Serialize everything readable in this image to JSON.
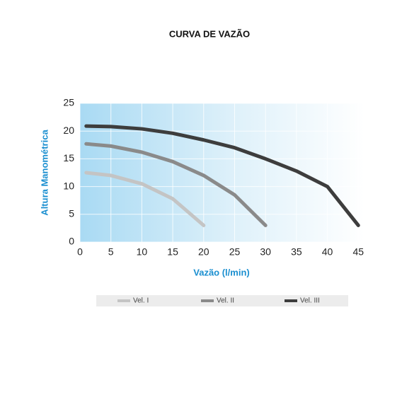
{
  "chart_data": {
    "type": "line",
    "title": "CURVA DE VAZÃO",
    "x_label": "Vazão (l/min)",
    "y_label": "Altura Manométrica",
    "xlim": [
      0,
      46
    ],
    "ylim": [
      0,
      25
    ],
    "xticks": [
      0,
      5,
      10,
      15,
      20,
      25,
      30,
      35,
      40,
      45
    ],
    "yticks": [
      0,
      5,
      10,
      15,
      20,
      25
    ],
    "grid": true,
    "series": [
      {
        "name": "Vel. I",
        "color": "#c4c4c4",
        "x": [
          1,
          5,
          10,
          15,
          20
        ],
        "values": [
          12.5,
          12,
          10.5,
          7.8,
          3
        ]
      },
      {
        "name": "Vel. II",
        "color": "#8a8a8a",
        "x": [
          1,
          5,
          10,
          15,
          20,
          25,
          30
        ],
        "values": [
          17.7,
          17.3,
          16.2,
          14.5,
          12,
          8.5,
          3
        ]
      },
      {
        "name": "Vel. III",
        "color": "#3d3d3d",
        "x": [
          1,
          5,
          10,
          15,
          20,
          25,
          30,
          35,
          40,
          45
        ],
        "values": [
          20.9,
          20.8,
          20.4,
          19.6,
          18.4,
          17,
          15,
          12.8,
          10,
          3
        ]
      }
    ]
  }
}
